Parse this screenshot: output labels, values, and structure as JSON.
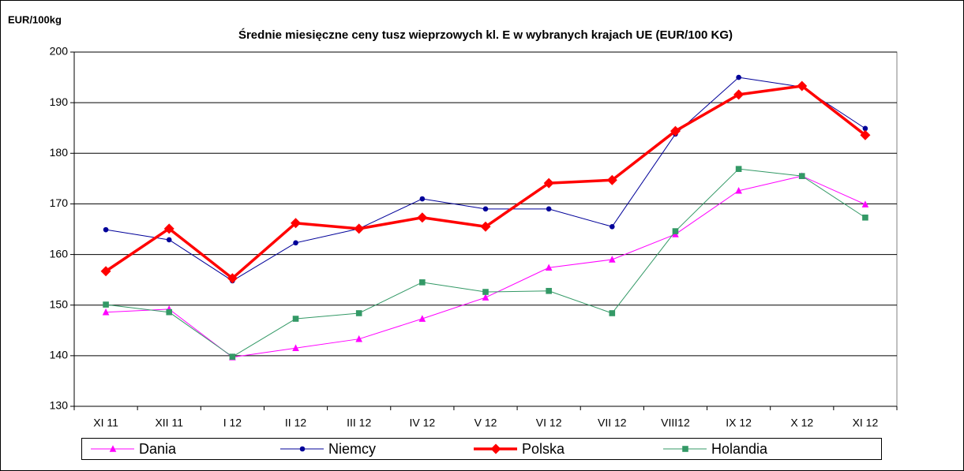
{
  "chart_data": {
    "type": "line",
    "title": "Średnie miesięczne ceny tusz wieprzowych kl. E w wybranych krajach UE (EUR/100 KG)",
    "y_label": "EUR/100kg",
    "categories": [
      "XI 11",
      "XII 11",
      "I 12",
      "II 12",
      "III 12",
      "IV 12",
      "V 12",
      "VI 12",
      "VII 12",
      "VIII12",
      "IX 12",
      "X 12",
      "XI 12"
    ],
    "series": [
      {
        "name": "Dania",
        "color": "#ff00ff",
        "marker": "triangle",
        "line_width": 1,
        "values": [
          148.6,
          149.2,
          139.7,
          141.5,
          143.3,
          147.3,
          151.5,
          157.4,
          159.0,
          164.0,
          172.6,
          175.5,
          169.9
        ]
      },
      {
        "name": "Niemcy",
        "color": "#000099",
        "marker": "circle",
        "line_width": 1,
        "values": [
          164.9,
          162.9,
          154.8,
          162.3,
          165.1,
          171.0,
          169.0,
          169.0,
          165.5,
          183.8,
          195.0,
          193.1,
          184.9
        ]
      },
      {
        "name": "Polska",
        "color": "#ff0000",
        "marker": "diamond",
        "line_width": 3.5,
        "values": [
          156.7,
          165.1,
          155.3,
          166.2,
          165.1,
          167.3,
          165.5,
          174.1,
          174.7,
          184.4,
          191.6,
          193.3,
          183.6
        ]
      },
      {
        "name": "Holandia",
        "color": "#339966",
        "marker": "square",
        "line_width": 1,
        "values": [
          150.1,
          148.6,
          139.8,
          147.3,
          148.4,
          154.5,
          152.6,
          152.8,
          148.4,
          164.6,
          176.9,
          175.5,
          167.3
        ]
      }
    ],
    "ylim": [
      130,
      200
    ],
    "yticks": [
      130,
      140,
      150,
      160,
      170,
      180,
      190,
      200
    ],
    "grid": true,
    "legend": "bottom"
  }
}
